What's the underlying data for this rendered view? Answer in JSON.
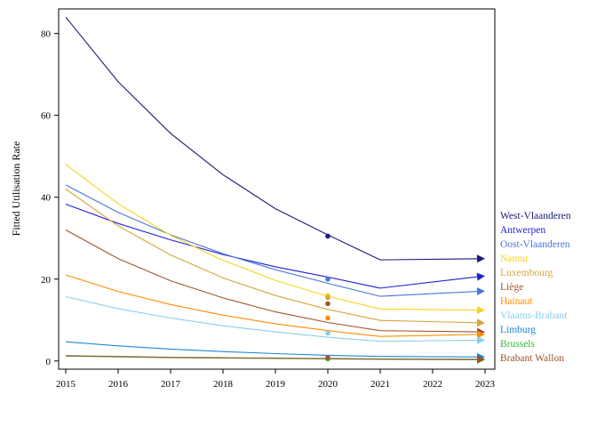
{
  "chart_data": {
    "type": "line",
    "title": "",
    "xlabel": "",
    "ylabel": "Fitted Utilisation Rate",
    "x": [
      2015,
      2016,
      2017,
      2018,
      2019,
      2020,
      2021,
      2022,
      2023
    ],
    "xlim": [
      2015,
      2023
    ],
    "ylim": [
      -2,
      86
    ],
    "xticks": [
      "2015",
      "2016",
      "2017",
      "2018",
      "2019",
      "2020",
      "2021",
      "2022",
      "2023"
    ],
    "yticks": [
      "0",
      "20",
      "40",
      "60",
      "80"
    ],
    "grid": false,
    "legend_position": "right",
    "projection": "2023 values shown as arrow projections from 2021",
    "series": [
      {
        "name": "West-Vlaanderen",
        "color": "#1a1a7a",
        "values": [
          84,
          68.2,
          55.6,
          45.5,
          37.2,
          30.8,
          24.7,
          null,
          25.0
        ],
        "point_2020": 30.5
      },
      {
        "name": "Antwerpen",
        "color": "#1f1fd6",
        "values": [
          38.3,
          33.6,
          29.6,
          26.0,
          23.0,
          20.5,
          17.8,
          null,
          20.8
        ],
        "point_2020": null
      },
      {
        "name": "Oost-Vlaanderen",
        "color": "#4a76d8",
        "values": [
          43,
          36.3,
          30.8,
          26.2,
          22.3,
          19.0,
          15.8,
          null,
          17.1
        ],
        "point_2020": 20.0
      },
      {
        "name": "Namur",
        "color": "#f6d51b",
        "values": [
          48,
          38.4,
          30.7,
          24.6,
          19.7,
          15.8,
          12.7,
          null,
          12.4
        ],
        "point_2020": 16.0
      },
      {
        "name": "Luxembourg",
        "color": "#d9a43a",
        "values": [
          42,
          33.0,
          25.9,
          20.3,
          16.0,
          12.6,
          9.9,
          null,
          9.3
        ],
        "point_2020": 15.5
      },
      {
        "name": "Liège",
        "color": "#a0522d",
        "values": [
          32,
          25.0,
          19.6,
          15.4,
          12.0,
          9.4,
          7.4,
          null,
          7.1
        ],
        "point_2020": 14.0
      },
      {
        "name": "Hainaut",
        "color": "#ff8c00",
        "values": [
          21,
          17.0,
          13.8,
          11.2,
          9.1,
          7.4,
          6.0,
          null,
          6.5
        ],
        "point_2020": 10.5
      },
      {
        "name": "Vlaams-Brabant",
        "color": "#87ceeb",
        "values": [
          15.7,
          12.8,
          10.5,
          8.6,
          7.1,
          5.8,
          4.8,
          null,
          5.1
        ],
        "point_2020": 6.8
      },
      {
        "name": "Limburg",
        "color": "#1e88d2",
        "values": [
          4.7,
          3.7,
          2.9,
          2.3,
          1.8,
          1.4,
          1.1,
          null,
          1.0
        ],
        "point_2020": null
      },
      {
        "name": "Brussels",
        "color": "#3cb43c",
        "values": [
          1.2,
          1.0,
          0.8,
          0.7,
          0.6,
          0.5,
          0.4,
          null,
          0.3
        ],
        "point_2020": 0.5
      },
      {
        "name": "Brabant Wallon",
        "color": "#a0522d",
        "values": [
          1.3,
          1.1,
          0.9,
          0.8,
          0.7,
          0.6,
          0.5,
          null,
          0.4
        ],
        "point_2020": 0.8
      }
    ]
  }
}
